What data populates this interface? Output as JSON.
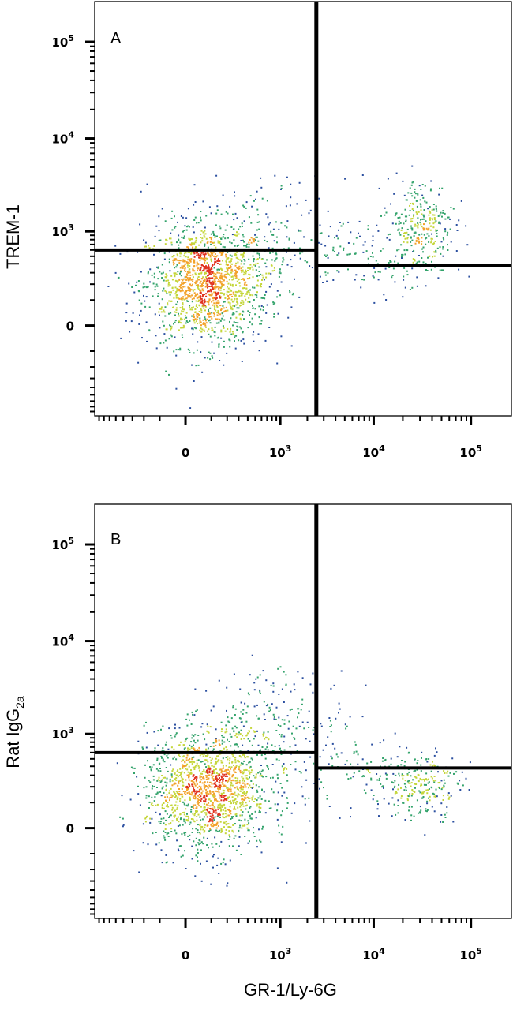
{
  "chart_data": [
    {
      "type": "scatter",
      "panel_label": "A",
      "ylabel": "TREM-1",
      "xlabel": "GR-1/Ly-6G",
      "x_scale": "biexponential",
      "y_scale": "biexponential",
      "x_ticks": [
        {
          "base": "0",
          "sup": ""
        },
        {
          "base": "10",
          "sup": "3"
        },
        {
          "base": "10",
          "sup": "4"
        },
        {
          "base": "10",
          "sup": "5"
        }
      ],
      "y_ticks": [
        {
          "base": "0",
          "sup": ""
        },
        {
          "base": "10",
          "sup": "3"
        },
        {
          "base": "10",
          "sup": "4"
        },
        {
          "base": "10",
          "sup": "5"
        }
      ],
      "quadrant_gate": {
        "x": 2500,
        "y_left": 600,
        "y_right": 380
      },
      "populations": [
        {
          "name": "",
          "x": 80,
          "y": 200,
          "count": 1500,
          "spread_x": 0.9,
          "spread_y": 0.9,
          "color": "#2b4fa0"
        },
        {
          "name": "",
          "x": 500,
          "y": 800,
          "count": 200,
          "spread_x": 1.3,
          "spread_y": 0.9,
          "color": "#2b4fa0"
        },
        {
          "name": "",
          "x": 30000,
          "y": 1200,
          "count": 300,
          "spread_x": 0.5,
          "spread_y": 0.7,
          "color": "#2b4fa0"
        },
        {
          "name": "",
          "x": 8000,
          "y": 500,
          "count": 120,
          "spread_x": 1.1,
          "spread_y": 0.6,
          "color": "#2b4fa0"
        }
      ],
      "density_colors": [
        "#2b4fa0",
        "#33a36b",
        "#c4d63a",
        "#f2a22b",
        "#e0321f"
      ]
    },
    {
      "type": "scatter",
      "panel_label": "B",
      "ylabel": "Rat IgG",
      "ylabel_sub": "2a",
      "xlabel": "GR-1/Ly-6G",
      "x_scale": "biexponential",
      "y_scale": "biexponential",
      "x_ticks": [
        {
          "base": "0",
          "sup": ""
        },
        {
          "base": "10",
          "sup": "3"
        },
        {
          "base": "10",
          "sup": "4"
        },
        {
          "base": "10",
          "sup": "5"
        }
      ],
      "y_ticks": [
        {
          "base": "0",
          "sup": ""
        },
        {
          "base": "10",
          "sup": "3"
        },
        {
          "base": "10",
          "sup": "4"
        },
        {
          "base": "10",
          "sup": "5"
        }
      ],
      "quadrant_gate": {
        "x": 2500,
        "y_left": 600,
        "y_right": 380
      },
      "populations": [
        {
          "name": "",
          "x": 80,
          "y": 180,
          "count": 1500,
          "spread_x": 0.9,
          "spread_y": 0.9,
          "color": "#2b4fa0"
        },
        {
          "name": "",
          "x": 1000,
          "y": 1200,
          "count": 250,
          "spread_x": 1.0,
          "spread_y": 0.9,
          "color": "#2b4fa0"
        },
        {
          "name": "",
          "x": 30000,
          "y": 220,
          "count": 220,
          "spread_x": 0.6,
          "spread_y": 0.5,
          "color": "#2b4fa0"
        },
        {
          "name": "",
          "x": 8000,
          "y": 300,
          "count": 100,
          "spread_x": 1.0,
          "spread_y": 0.5,
          "color": "#2b4fa0"
        }
      ],
      "density_colors": [
        "#2b4fa0",
        "#33a36b",
        "#c4d63a",
        "#f2a22b",
        "#e0321f"
      ]
    }
  ],
  "shared_xlabel": "GR-1/Ly-6G"
}
